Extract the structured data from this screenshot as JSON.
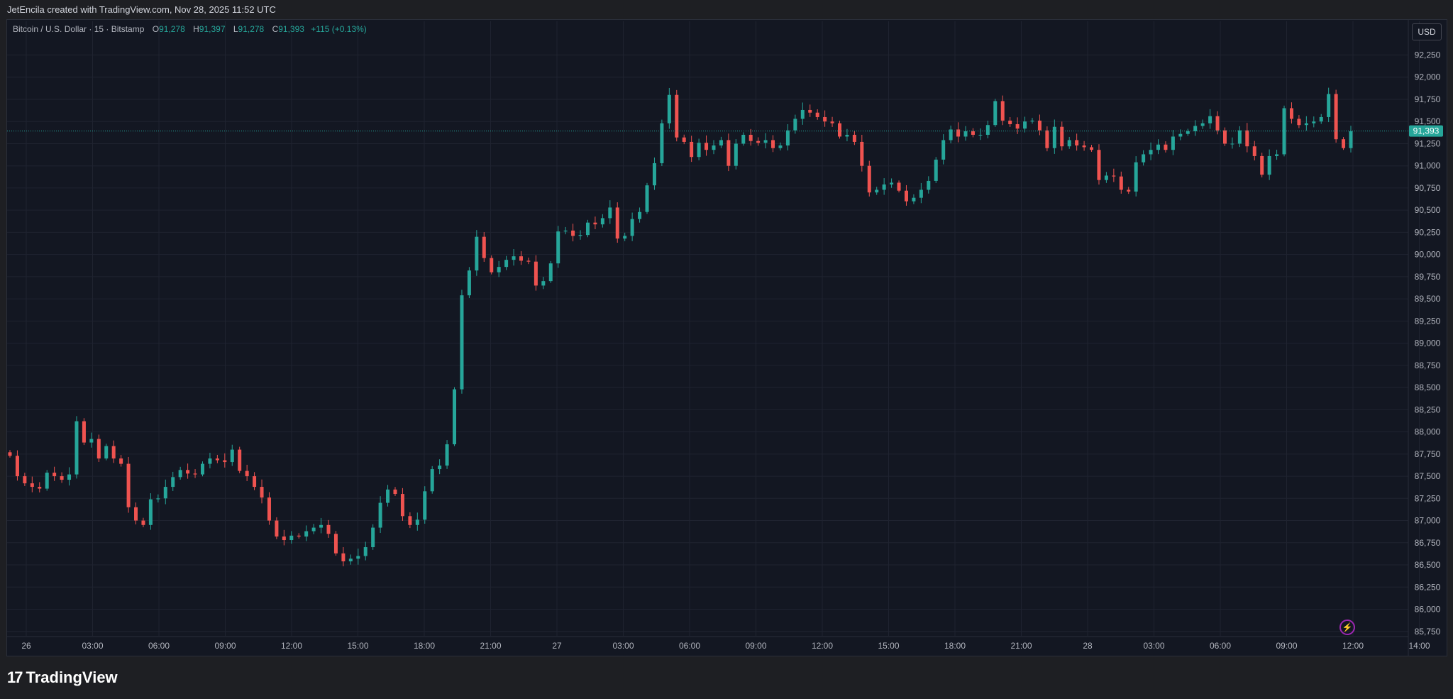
{
  "header": {
    "attribution": "JetEncila created with TradingView.com, Nov 28, 2025 11:52 UTC"
  },
  "legend": {
    "symbol": "Bitcoin / U.S. Dollar · 15 · Bitstamp",
    "o_label": "O",
    "o_value": "91,278",
    "h_label": "H",
    "h_value": "91,397",
    "l_label": "L",
    "l_value": "91,278",
    "c_label": "C",
    "c_value": "91,393",
    "change": "+115 (+0.13%)"
  },
  "currency_button": "USD",
  "brand": {
    "name": "TradingView"
  },
  "colors": {
    "up": "#26a69a",
    "down": "#ef5350",
    "background": "#131722",
    "grid": "#1f2330",
    "text": "#b2b5be"
  },
  "chart_data": {
    "type": "candlestick",
    "title": "Bitcoin / U.S. Dollar · 15 · Bitstamp",
    "ylim": [
      85700,
      92550
    ],
    "y_ticks": [
      85750,
      86000,
      86250,
      86500,
      86750,
      87000,
      87250,
      87500,
      87750,
      88000,
      88250,
      88500,
      88750,
      89000,
      89250,
      89500,
      89750,
      90000,
      90250,
      90500,
      90750,
      91000,
      91250,
      91500,
      91750,
      92000,
      92250
    ],
    "y_tick_labels": [
      "85,750",
      "86,000",
      "86,250",
      "86,500",
      "86,750",
      "87,000",
      "87,250",
      "87,500",
      "87,750",
      "88,000",
      "88,250",
      "88,500",
      "88,750",
      "89,000",
      "89,250",
      "89,500",
      "89,750",
      "90,000",
      "90,250",
      "90,500",
      "90,750",
      "91,000",
      "91,250",
      "91,500",
      "91,750",
      "92,000",
      "92,250"
    ],
    "x_tick_labels": [
      "26",
      "03:00",
      "06:00",
      "09:00",
      "12:00",
      "15:00",
      "18:00",
      "21:00",
      "27",
      "03:00",
      "06:00",
      "09:00",
      "12:00",
      "15:00",
      "18:00",
      "21:00",
      "28",
      "03:00",
      "06:00",
      "09:00",
      "12:00",
      "14:00"
    ],
    "last_price": 91393,
    "last_price_label": "91,393",
    "candles_close": [
      87730,
      87500,
      87420,
      87380,
      87360,
      87540,
      87500,
      87460,
      87520,
      88120,
      87880,
      87920,
      87700,
      87840,
      87700,
      87640,
      87150,
      87000,
      86950,
      87240,
      87250,
      87380,
      87490,
      87570,
      87530,
      87520,
      87640,
      87700,
      87680,
      87660,
      87800,
      87560,
      87500,
      87380,
      87260,
      87000,
      86820,
      86780,
      86830,
      86820,
      86880,
      86920,
      86950,
      86850,
      86630,
      86540,
      86570,
      86600,
      86700,
      86920,
      87200,
      87350,
      87300,
      87050,
      86950,
      87010,
      87330,
      87580,
      87620,
      87860,
      88480,
      89540,
      89820,
      90200,
      89960,
      89800,
      89860,
      89940,
      89980,
      89930,
      89920,
      89650,
      89700,
      89900,
      90260,
      90270,
      90210,
      90220,
      90360,
      90340,
      90410,
      90530,
      90180,
      90210,
      90400,
      90480,
      90780,
      91030,
      91480,
      91800,
      91320,
      91270,
      91100,
      91260,
      91180,
      91230,
      91290,
      91000,
      91250,
      91350,
      91280,
      91260,
      91290,
      91200,
      91230,
      91400,
      91530,
      91630,
      91600,
      91550,
      91500,
      91480,
      91330,
      91350,
      91270,
      91000,
      90700,
      90730,
      90790,
      90810,
      90720,
      90600,
      90640,
      90730,
      90830,
      91070,
      91290,
      91410,
      91330,
      91390,
      91350,
      91350,
      91460,
      91730,
      91510,
      91470,
      91420,
      91500,
      91510,
      91400,
      91200,
      91440,
      91220,
      91290,
      91230,
      91210,
      91180,
      90840,
      90890,
      90880,
      90730,
      90710,
      91040,
      91130,
      91180,
      91240,
      91180,
      91330,
      91360,
      91390,
      91450,
      91480,
      91560,
      91400,
      91250,
      91250,
      91400,
      91220,
      91110,
      90900,
      91110,
      91130,
      91650,
      91530,
      91460,
      91480,
      91500,
      91550,
      91810,
      91300,
      91200,
      91390
    ]
  }
}
